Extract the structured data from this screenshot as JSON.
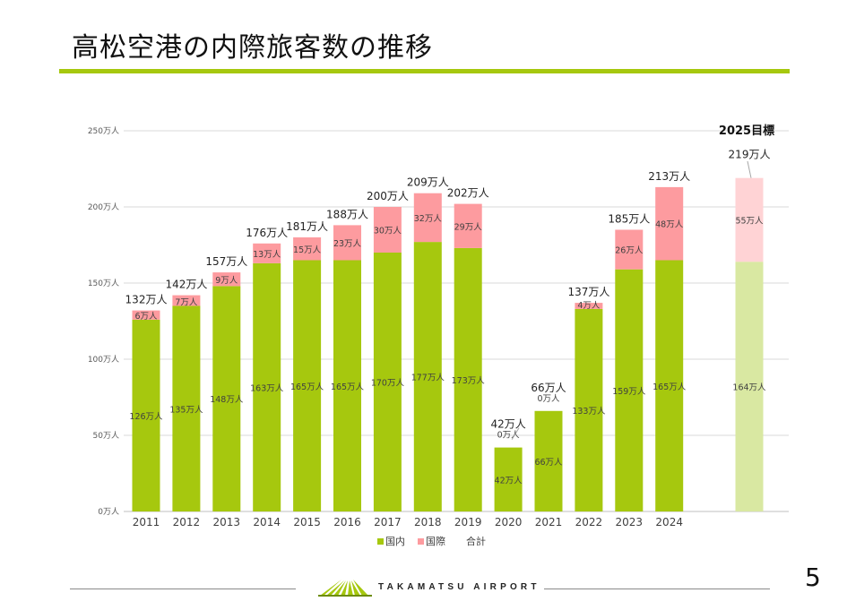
{
  "slide": {
    "title": "高松空港の内際旅客数の推移",
    "page_number": "5",
    "logo_text": "TAKAMATSU AIRPORT"
  },
  "colors": {
    "accent": "#a6c80e",
    "domestic": "#a6c80e",
    "international": "#fd9b9f",
    "domestic_target": "#d9e8a2",
    "international_target": "#ffd3d5"
  },
  "chart_data": {
    "type": "bar",
    "stacked": true,
    "title": "",
    "xlabel": "",
    "ylabel": "",
    "unit": "万人",
    "ylim": [
      0,
      250
    ],
    "yticks": [
      0,
      50,
      100,
      150,
      200,
      250
    ],
    "ytick_labels": [
      "0万人",
      "50万人",
      "100万人",
      "150万人",
      "200万人",
      "250万人"
    ],
    "categories": [
      "2011",
      "2012",
      "2013",
      "2014",
      "2015",
      "2016",
      "2017",
      "2018",
      "2019",
      "2020",
      "2021",
      "2022",
      "2023",
      "2024",
      ""
    ],
    "series": [
      {
        "name": "国内",
        "values": [
          126,
          135,
          148,
          163,
          165,
          165,
          170,
          177,
          173,
          42,
          66,
          133,
          159,
          165,
          164
        ],
        "labels": [
          "126万人",
          "135万人",
          "148万人",
          "163万人",
          "165万人",
          "165万人",
          "170万人",
          "177万人",
          "173万人",
          "42万人",
          "66万人",
          "133万人",
          "159万人",
          "165万人",
          "164万人"
        ]
      },
      {
        "name": "国際",
        "values": [
          6,
          7,
          9,
          13,
          15,
          23,
          30,
          32,
          29,
          0,
          0,
          4,
          26,
          48,
          55
        ],
        "labels": [
          "6万人",
          "7万人",
          "9万人",
          "13万人",
          "15万人",
          "23万人",
          "30万人",
          "32万人",
          "29万人",
          "0万人",
          "0万人",
          "4万人",
          "26万人",
          "48万人",
          "55万人"
        ]
      }
    ],
    "totals": [
      132,
      142,
      157,
      176,
      181,
      188,
      200,
      209,
      202,
      42,
      66,
      137,
      185,
      213,
      219
    ],
    "total_labels": [
      "132万人",
      "142万人",
      "157万人",
      "176万人",
      "181万人",
      "188万人",
      "200万人",
      "209万人",
      "202万人",
      "42万人",
      "66万人",
      "137万人",
      "185万人",
      "213万人",
      "219万人"
    ],
    "target_index": 14,
    "target_label": "2025目標",
    "legend": [
      "国内",
      "国際",
      "合計"
    ],
    "legend_position": "bottom",
    "grid": true
  }
}
